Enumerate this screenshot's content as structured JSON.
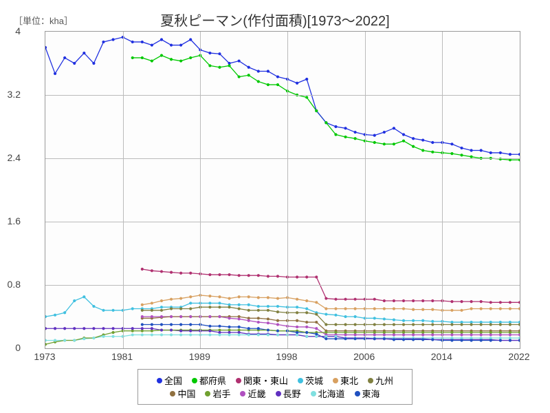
{
  "chart": {
    "type": "line",
    "title": "夏秋ピーマン(作付面積)[1973〜2022]",
    "unit_label": "［単位：kha］",
    "background_color": "#ffffff",
    "grid_color": "#bbbbbb",
    "border_color": "#999999",
    "title_fontsize": 20,
    "label_fontsize": 14,
    "x": {
      "min": 1973,
      "max": 2022,
      "ticks": [
        1973,
        1981,
        1989,
        1998,
        2006,
        2014,
        2022
      ]
    },
    "y": {
      "min": 0,
      "max": 4,
      "ticks": [
        0,
        0.8,
        1.6,
        2.4,
        3.2,
        4
      ]
    },
    "line_width": 1.3,
    "marker_radius": 2.1,
    "series": [
      {
        "name": "全国",
        "color": "#2030e0",
        "start_year": 1973,
        "values": [
          3.8,
          3.47,
          3.67,
          3.6,
          3.73,
          3.6,
          3.87,
          3.9,
          3.93,
          3.87,
          3.87,
          3.83,
          3.9,
          3.83,
          3.83,
          3.9,
          3.77,
          3.73,
          3.72,
          3.6,
          3.63,
          3.55,
          3.5,
          3.5,
          3.43,
          3.4,
          3.35,
          3.4,
          3.0,
          2.85,
          2.8,
          2.78,
          2.73,
          2.7,
          2.69,
          2.73,
          2.78,
          2.7,
          2.65,
          2.63,
          2.6,
          2.6,
          2.58,
          2.53,
          2.5,
          2.5,
          2.47,
          2.47,
          2.45,
          2.45
        ]
      },
      {
        "name": "都府県",
        "color": "#00c800",
        "start_year": 1982,
        "values": [
          3.67,
          3.67,
          3.63,
          3.7,
          3.65,
          3.63,
          3.67,
          3.7,
          3.57,
          3.55,
          3.57,
          3.43,
          3.45,
          3.37,
          3.33,
          3.33,
          3.25,
          3.2,
          3.17,
          3.0,
          2.85,
          2.7,
          2.67,
          2.65,
          2.62,
          2.6,
          2.58,
          2.58,
          2.62,
          2.55,
          2.5,
          2.48,
          2.47,
          2.46,
          2.44,
          2.42,
          2.4,
          2.4,
          2.39,
          2.38,
          2.38
        ]
      },
      {
        "name": "関東・東山",
        "color": "#b03070",
        "start_year": 1983,
        "values": [
          1.0,
          0.98,
          0.97,
          0.96,
          0.95,
          0.95,
          0.94,
          0.93,
          0.93,
          0.93,
          0.92,
          0.92,
          0.92,
          0.91,
          0.91,
          0.9,
          0.9,
          0.9,
          0.9,
          0.63,
          0.62,
          0.62,
          0.62,
          0.62,
          0.62,
          0.6,
          0.6,
          0.6,
          0.6,
          0.6,
          0.6,
          0.6,
          0.59,
          0.59,
          0.59,
          0.59,
          0.58,
          0.58,
          0.58,
          0.58
        ]
      },
      {
        "name": "茨城",
        "color": "#40c0e0",
        "start_year": 1973,
        "values": [
          0.4,
          0.42,
          0.45,
          0.6,
          0.65,
          0.53,
          0.48,
          0.48,
          0.48,
          0.5,
          0.5,
          0.5,
          0.52,
          0.52,
          0.52,
          0.57,
          0.57,
          0.57,
          0.57,
          0.55,
          0.55,
          0.55,
          0.53,
          0.53,
          0.53,
          0.52,
          0.52,
          0.5,
          0.45,
          0.43,
          0.42,
          0.4,
          0.4,
          0.38,
          0.38,
          0.37,
          0.36,
          0.35,
          0.35,
          0.35,
          0.34,
          0.34,
          0.33,
          0.33,
          0.33,
          0.33,
          0.33,
          0.33,
          0.33,
          0.33
        ]
      },
      {
        "name": "東北",
        "color": "#d8a060",
        "start_year": 1983,
        "values": [
          0.55,
          0.57,
          0.6,
          0.62,
          0.63,
          0.65,
          0.67,
          0.66,
          0.65,
          0.63,
          0.65,
          0.65,
          0.64,
          0.64,
          0.63,
          0.64,
          0.62,
          0.6,
          0.58,
          0.5,
          0.5,
          0.5,
          0.5,
          0.5,
          0.5,
          0.5,
          0.5,
          0.5,
          0.49,
          0.49,
          0.49,
          0.48,
          0.48,
          0.48,
          0.5,
          0.5,
          0.5,
          0.5,
          0.5,
          0.5
        ]
      },
      {
        "name": "九州",
        "color": "#808040",
        "start_year": 1983,
        "values": [
          0.48,
          0.48,
          0.48,
          0.5,
          0.5,
          0.5,
          0.52,
          0.52,
          0.52,
          0.52,
          0.5,
          0.48,
          0.48,
          0.48,
          0.46,
          0.45,
          0.45,
          0.45,
          0.43,
          0.3,
          0.3,
          0.3,
          0.3,
          0.3,
          0.3,
          0.3,
          0.3,
          0.3,
          0.3,
          0.3,
          0.3,
          0.3,
          0.3,
          0.3,
          0.3,
          0.3,
          0.3,
          0.3,
          0.3,
          0.3
        ]
      },
      {
        "name": "中国",
        "color": "#907040",
        "start_year": 1983,
        "values": [
          0.38,
          0.38,
          0.39,
          0.4,
          0.4,
          0.4,
          0.4,
          0.4,
          0.4,
          0.4,
          0.4,
          0.38,
          0.38,
          0.37,
          0.35,
          0.35,
          0.35,
          0.33,
          0.33,
          0.22,
          0.22,
          0.22,
          0.22,
          0.22,
          0.22,
          0.22,
          0.22,
          0.22,
          0.22,
          0.22,
          0.22,
          0.22,
          0.22,
          0.22,
          0.22,
          0.22,
          0.22,
          0.22,
          0.22,
          0.22
        ]
      },
      {
        "name": "岩手",
        "color": "#70a030",
        "start_year": 1973,
        "values": [
          0.05,
          0.08,
          0.1,
          0.1,
          0.13,
          0.13,
          0.17,
          0.2,
          0.22,
          0.22,
          0.22,
          0.22,
          0.23,
          0.23,
          0.23,
          0.23,
          0.23,
          0.23,
          0.23,
          0.23,
          0.23,
          0.23,
          0.23,
          0.23,
          0.22,
          0.22,
          0.22,
          0.2,
          0.2,
          0.2,
          0.2,
          0.2,
          0.2,
          0.2,
          0.2,
          0.2,
          0.2,
          0.2,
          0.2,
          0.2,
          0.2,
          0.2,
          0.2,
          0.2,
          0.2,
          0.2,
          0.2,
          0.2,
          0.2,
          0.2
        ]
      },
      {
        "name": "近畿",
        "color": "#b050c0",
        "start_year": 1983,
        "values": [
          0.4,
          0.4,
          0.4,
          0.4,
          0.4,
          0.4,
          0.4,
          0.4,
          0.4,
          0.38,
          0.37,
          0.35,
          0.33,
          0.32,
          0.3,
          0.28,
          0.27,
          0.27,
          0.25,
          0.17,
          0.17,
          0.17,
          0.17,
          0.17,
          0.17,
          0.17,
          0.17,
          0.17,
          0.17,
          0.17,
          0.17,
          0.17,
          0.17,
          0.17,
          0.17,
          0.17,
          0.17,
          0.17,
          0.17,
          0.17
        ]
      },
      {
        "name": "長野",
        "color": "#6030c0",
        "start_year": 1973,
        "values": [
          0.25,
          0.25,
          0.25,
          0.25,
          0.25,
          0.25,
          0.25,
          0.25,
          0.25,
          0.25,
          0.25,
          0.25,
          0.23,
          0.23,
          0.22,
          0.22,
          0.22,
          0.22,
          0.2,
          0.2,
          0.2,
          0.18,
          0.18,
          0.18,
          0.17,
          0.17,
          0.17,
          0.15,
          0.15,
          0.15,
          0.15,
          0.13,
          0.13,
          0.13,
          0.12,
          0.12,
          0.12,
          0.12,
          0.12,
          0.12,
          0.11,
          0.11,
          0.11,
          0.11,
          0.11,
          0.11,
          0.11,
          0.1,
          0.1,
          0.1
        ]
      },
      {
        "name": "北海道",
        "color": "#80e0e0",
        "start_year": 1973,
        "values": [
          0.1,
          0.1,
          0.1,
          0.1,
          0.12,
          0.13,
          0.15,
          0.15,
          0.15,
          0.17,
          0.17,
          0.17,
          0.17,
          0.17,
          0.17,
          0.17,
          0.17,
          0.17,
          0.17,
          0.17,
          0.17,
          0.17,
          0.17,
          0.17,
          0.17,
          0.17,
          0.17,
          0.15,
          0.15,
          0.15,
          0.15,
          0.13,
          0.13,
          0.13,
          0.13,
          0.13,
          0.13,
          0.13,
          0.13,
          0.13,
          0.13,
          0.13,
          0.13,
          0.13,
          0.13,
          0.13,
          0.13,
          0.13,
          0.13,
          0.13
        ]
      },
      {
        "name": "東海",
        "color": "#2050c0",
        "start_year": 1983,
        "values": [
          0.3,
          0.3,
          0.3,
          0.3,
          0.3,
          0.3,
          0.3,
          0.28,
          0.28,
          0.27,
          0.27,
          0.25,
          0.25,
          0.23,
          0.22,
          0.22,
          0.2,
          0.2,
          0.18,
          0.12,
          0.12,
          0.12,
          0.12,
          0.12,
          0.12,
          0.12,
          0.11,
          0.11,
          0.11,
          0.11,
          0.11,
          0.1,
          0.1,
          0.1,
          0.1,
          0.1,
          0.1,
          0.1,
          0.1,
          0.1
        ]
      }
    ]
  }
}
